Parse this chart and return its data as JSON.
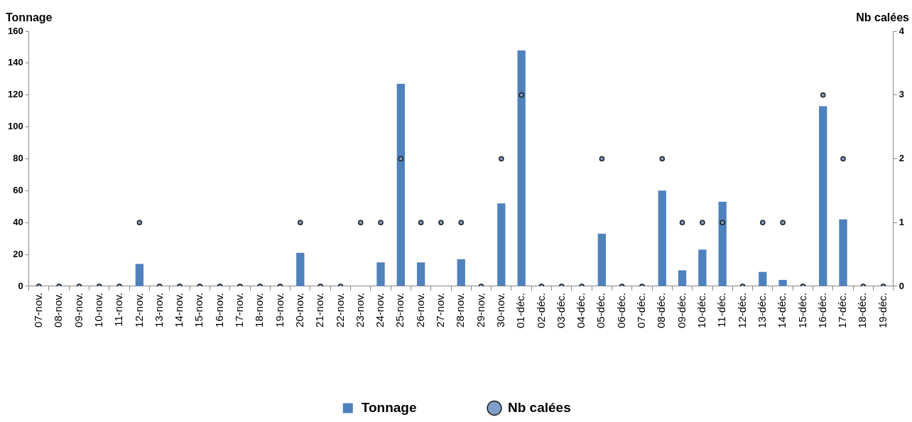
{
  "chart_data": {
    "type": "bar",
    "categories": [
      "07-nov.",
      "08-nov.",
      "09-nov.",
      "10-nov.",
      "11-nov.",
      "12-nov.",
      "13-nov.",
      "14-nov.",
      "15-nov.",
      "16-nov.",
      "17-nov.",
      "18-nov.",
      "19-nov.",
      "20-nov.",
      "21-nov.",
      "22-nov.",
      "23-nov.",
      "24-nov.",
      "25-nov.",
      "26-nov.",
      "27-nov.",
      "28-nov.",
      "29-nov.",
      "30-nov.",
      "01-déc.",
      "02-déc.",
      "03-déc.",
      "04-déc.",
      "05-déc.",
      "06-déc.",
      "07-déc.",
      "08-déc.",
      "09-déc.",
      "10-déc.",
      "11-déc.",
      "12-déc.",
      "13-déc.",
      "14-déc.",
      "15-déc.",
      "16-déc.",
      "17-déc.",
      "18-déc.",
      "19-déc."
    ],
    "series": [
      {
        "name": "Tonnage",
        "color": "#4f81bd",
        "values": [
          0,
          0,
          0,
          0,
          0,
          14,
          0,
          0,
          0,
          0,
          0,
          0,
          0,
          21,
          0,
          0,
          0,
          15,
          127,
          15,
          0,
          17,
          0,
          52,
          148,
          0,
          0,
          0,
          33,
          0,
          0,
          60,
          10,
          23,
          53,
          0,
          9,
          4,
          0,
          113,
          42,
          0,
          0
        ]
      },
      {
        "name": "Nb calées",
        "type": "scatter",
        "axis": "y2",
        "color": "#7f9fc8",
        "values": [
          0,
          0,
          0,
          0,
          0,
          1,
          0,
          0,
          0,
          0,
          0,
          0,
          0,
          1,
          0,
          0,
          1,
          1,
          2,
          1,
          1,
          1,
          0,
          2,
          3,
          0,
          0,
          0,
          2,
          0,
          0,
          2,
          1,
          1,
          1,
          0,
          1,
          1,
          0,
          3,
          2,
          0,
          0
        ]
      }
    ],
    "ylabel": "Tonnage",
    "y2label": "Nb calées",
    "ylim": [
      0,
      160
    ],
    "yticks": [
      0,
      20,
      40,
      60,
      80,
      100,
      120,
      140,
      160
    ],
    "y2lim": [
      0,
      4
    ],
    "y2ticks": [
      0,
      1,
      2,
      3,
      4
    ],
    "grid": false,
    "legend": "bottom",
    "marker": "circle"
  }
}
